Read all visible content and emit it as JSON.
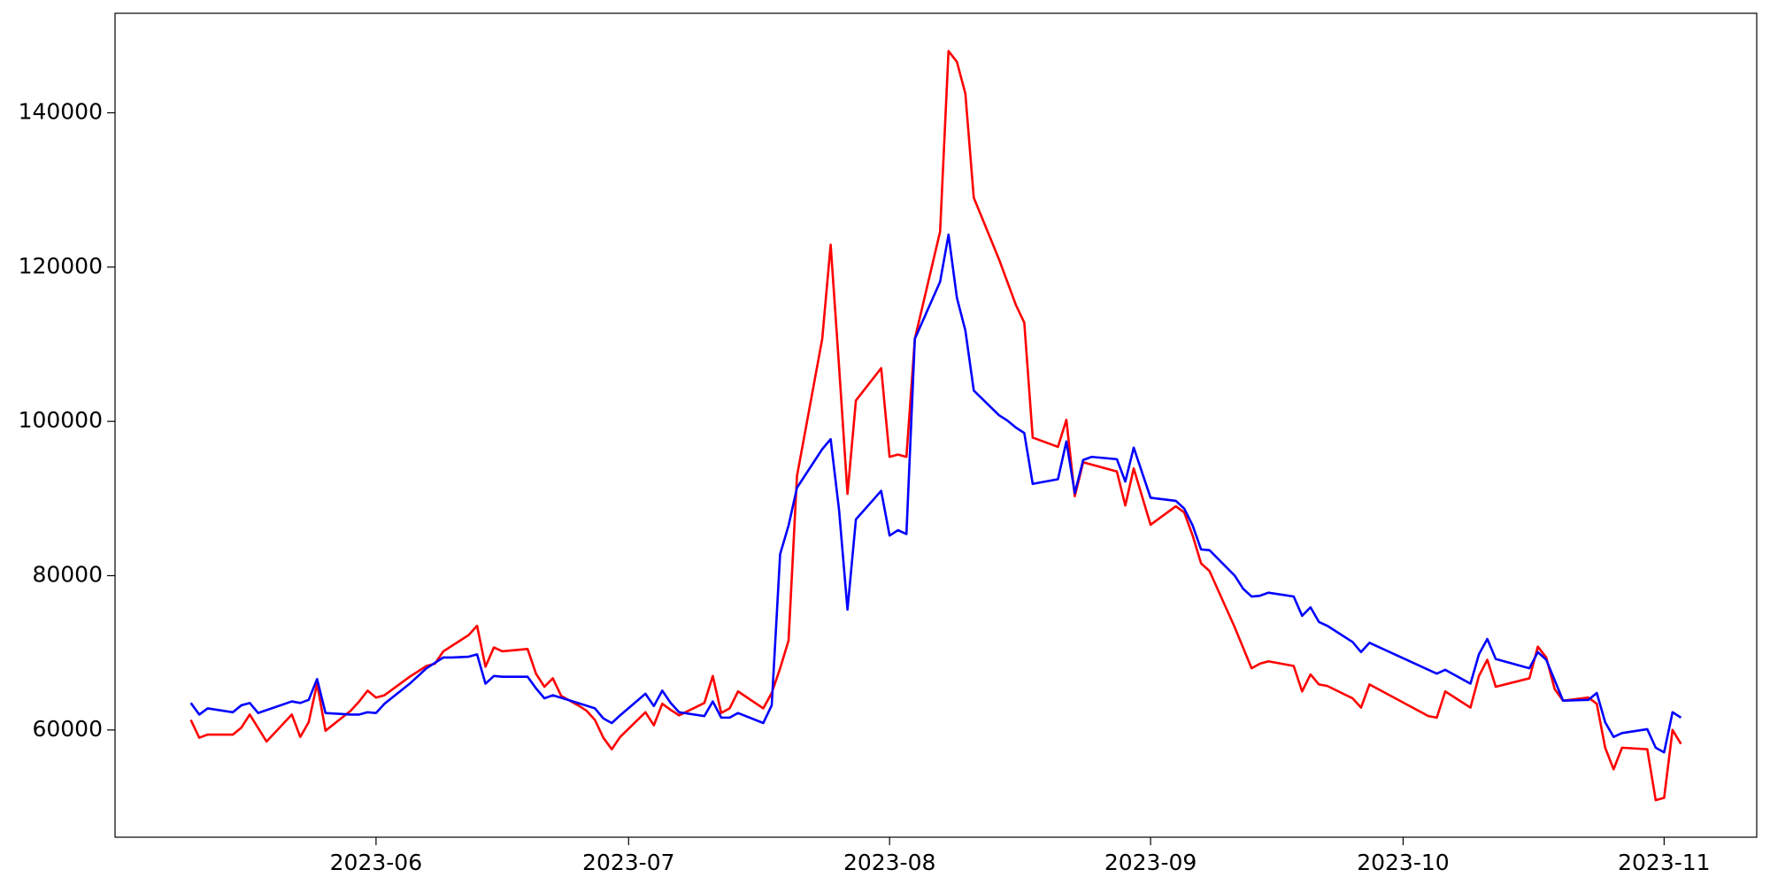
{
  "chart_data": {
    "type": "line",
    "xlim": [
      "2023-05-01",
      "2023-11-12"
    ],
    "xticks": [
      {
        "value": "2023-06-01",
        "label": "2023-06"
      },
      {
        "value": "2023-07-01",
        "label": "2023-07"
      },
      {
        "value": "2023-08-01",
        "label": "2023-08"
      },
      {
        "value": "2023-09-01",
        "label": "2023-09"
      },
      {
        "value": "2023-10-01",
        "label": "2023-10"
      },
      {
        "value": "2023-11-01",
        "label": "2023-11"
      }
    ],
    "ylim": [
      46100,
      152900
    ],
    "yticks": [
      60000,
      80000,
      100000,
      120000,
      140000
    ],
    "grid": false,
    "series": [
      {
        "color": "#ff0000",
        "x": [
          "2023-05-10",
          "2023-05-11",
          "2023-05-12",
          "2023-05-15",
          "2023-05-16",
          "2023-05-17",
          "2023-05-19",
          "2023-05-22",
          "2023-05-23",
          "2023-05-24",
          "2023-05-25",
          "2023-05-26",
          "2023-05-29",
          "2023-05-30",
          "2023-05-31",
          "2023-06-01",
          "2023-06-02",
          "2023-06-05",
          "2023-06-07",
          "2023-06-08",
          "2023-06-09",
          "2023-06-12",
          "2023-06-13",
          "2023-06-14",
          "2023-06-15",
          "2023-06-16",
          "2023-06-19",
          "2023-06-20",
          "2023-06-21",
          "2023-06-22",
          "2023-06-23",
          "2023-06-25",
          "2023-06-26",
          "2023-06-27",
          "2023-06-28",
          "2023-06-29",
          "2023-06-30",
          "2023-07-03",
          "2023-07-04",
          "2023-07-05",
          "2023-07-06",
          "2023-07-07",
          "2023-07-10",
          "2023-07-11",
          "2023-07-12",
          "2023-07-13",
          "2023-07-14",
          "2023-07-17",
          "2023-07-18",
          "2023-07-19",
          "2023-07-20",
          "2023-07-21",
          "2023-07-24",
          "2023-07-25",
          "2023-07-26",
          "2023-07-27",
          "2023-07-28",
          "2023-07-31",
          "2023-08-01",
          "2023-08-02",
          "2023-08-03",
          "2023-08-04",
          "2023-08-07",
          "2023-08-08",
          "2023-08-09",
          "2023-08-10",
          "2023-08-11",
          "2023-08-14",
          "2023-08-16",
          "2023-08-17",
          "2023-08-18",
          "2023-08-21",
          "2023-08-22",
          "2023-08-23",
          "2023-08-24",
          "2023-08-28",
          "2023-08-29",
          "2023-08-30",
          "2023-09-01",
          "2023-09-04",
          "2023-09-05",
          "2023-09-06",
          "2023-09-07",
          "2023-09-08",
          "2023-09-11",
          "2023-09-13",
          "2023-09-14",
          "2023-09-15",
          "2023-09-18",
          "2023-09-19",
          "2023-09-20",
          "2023-09-21",
          "2023-09-22",
          "2023-09-25",
          "2023-09-26",
          "2023-09-27",
          "2023-10-04",
          "2023-10-05",
          "2023-10-06",
          "2023-10-09",
          "2023-10-10",
          "2023-10-11",
          "2023-10-12",
          "2023-10-16",
          "2023-10-17",
          "2023-10-18",
          "2023-10-19",
          "2023-10-20",
          "2023-10-23",
          "2023-10-24",
          "2023-10-25",
          "2023-10-26",
          "2023-10-27",
          "2023-10-30",
          "2023-10-31",
          "2023-11-01",
          "2023-11-02",
          "2023-11-03"
        ],
        "values": [
          61300,
          59000,
          59400,
          59400,
          60300,
          62000,
          58500,
          62000,
          59100,
          61000,
          66000,
          59900,
          62500,
          63700,
          65100,
          64200,
          64500,
          66900,
          68300,
          68600,
          70200,
          72300,
          73500,
          68200,
          70700,
          70200,
          70500,
          67300,
          65600,
          66700,
          64400,
          63200,
          62500,
          61300,
          59000,
          57500,
          59100,
          62300,
          60600,
          63400,
          62600,
          61900,
          63500,
          67000,
          62200,
          62800,
          65000,
          62800,
          64800,
          68000,
          71600,
          92900,
          110700,
          122900,
          107100,
          90600,
          102700,
          106900,
          95400,
          95700,
          95400,
          110700,
          124600,
          148000,
          146600,
          142500,
          129000,
          121000,
          115100,
          112800,
          97900,
          96700,
          100200,
          90300,
          94700,
          93500,
          89100,
          93900,
          86600,
          89000,
          88200,
          85200,
          81600,
          80600,
          73300,
          68000,
          68600,
          68900,
          68300,
          65000,
          67200,
          65900,
          65700,
          64100,
          62900,
          65900,
          61800,
          61600,
          65000,
          62900,
          67000,
          69100,
          65600,
          66700,
          70800,
          69400,
          65300,
          63800,
          64200,
          63400,
          57700,
          54900,
          57700,
          57500,
          50900,
          51200,
          60000,
          58200
        ]
      },
      {
        "color": "#0000ff",
        "x": [
          "2023-05-10",
          "2023-05-11",
          "2023-05-12",
          "2023-05-15",
          "2023-05-16",
          "2023-05-17",
          "2023-05-18",
          "2023-05-22",
          "2023-05-23",
          "2023-05-24",
          "2023-05-25",
          "2023-05-26",
          "2023-05-29",
          "2023-05-30",
          "2023-05-31",
          "2023-06-01",
          "2023-06-02",
          "2023-06-05",
          "2023-06-07",
          "2023-06-09",
          "2023-06-10",
          "2023-06-12",
          "2023-06-13",
          "2023-06-14",
          "2023-06-15",
          "2023-06-16",
          "2023-06-19",
          "2023-06-20",
          "2023-06-21",
          "2023-06-22",
          "2023-06-25",
          "2023-06-27",
          "2023-06-28",
          "2023-06-29",
          "2023-06-30",
          "2023-07-03",
          "2023-07-04",
          "2023-07-05",
          "2023-07-06",
          "2023-07-07",
          "2023-07-10",
          "2023-07-11",
          "2023-07-12",
          "2023-07-13",
          "2023-07-14",
          "2023-07-17",
          "2023-07-18",
          "2023-07-19",
          "2023-07-20",
          "2023-07-21",
          "2023-07-24",
          "2023-07-25",
          "2023-07-26",
          "2023-07-27",
          "2023-07-28",
          "2023-07-31",
          "2023-08-01",
          "2023-08-02",
          "2023-08-03",
          "2023-08-04",
          "2023-08-07",
          "2023-08-08",
          "2023-08-09",
          "2023-08-10",
          "2023-08-11",
          "2023-08-14",
          "2023-08-15",
          "2023-08-16",
          "2023-08-17",
          "2023-08-18",
          "2023-08-21",
          "2023-08-22",
          "2023-08-23",
          "2023-08-24",
          "2023-08-25",
          "2023-08-28",
          "2023-08-29",
          "2023-08-30",
          "2023-09-01",
          "2023-09-04",
          "2023-09-05",
          "2023-09-06",
          "2023-09-07",
          "2023-09-08",
          "2023-09-11",
          "2023-09-12",
          "2023-09-13",
          "2023-09-14",
          "2023-09-15",
          "2023-09-18",
          "2023-09-19",
          "2023-09-20",
          "2023-09-21",
          "2023-09-22",
          "2023-09-25",
          "2023-09-26",
          "2023-09-27",
          "2023-10-05",
          "2023-10-06",
          "2023-10-09",
          "2023-10-10",
          "2023-10-11",
          "2023-10-12",
          "2023-10-16",
          "2023-10-17",
          "2023-10-18",
          "2023-10-20",
          "2023-10-23",
          "2023-10-24",
          "2023-10-25",
          "2023-10-26",
          "2023-10-27",
          "2023-10-30",
          "2023-10-31",
          "2023-11-01",
          "2023-11-02",
          "2023-11-03"
        ],
        "values": [
          63500,
          62000,
          62800,
          62300,
          63200,
          63500,
          62200,
          63700,
          63500,
          63900,
          66600,
          62200,
          62000,
          62000,
          62300,
          62200,
          63400,
          66000,
          68000,
          69400,
          69400,
          69500,
          69800,
          66000,
          67000,
          66900,
          66900,
          65400,
          64100,
          64500,
          63500,
          62800,
          61500,
          60900,
          61900,
          64700,
          63100,
          65100,
          63500,
          62300,
          61800,
          63700,
          61600,
          61600,
          62200,
          60900,
          63200,
          82800,
          86500,
          91400,
          96400,
          97700,
          88500,
          75600,
          87300,
          91000,
          85200,
          85900,
          85400,
          110700,
          118100,
          124200,
          116000,
          111800,
          104000,
          100800,
          100100,
          99200,
          98500,
          91900,
          92500,
          97400,
          90700,
          95000,
          95400,
          95100,
          92200,
          96600,
          90100,
          89700,
          88700,
          86500,
          83400,
          83300,
          80000,
          78300,
          77300,
          77400,
          77800,
          77300,
          74800,
          75900,
          74000,
          73500,
          71400,
          70100,
          71300,
          67300,
          67800,
          66000,
          69800,
          71800,
          69200,
          68000,
          70100,
          69100,
          63800,
          63900,
          64800,
          61000,
          59100,
          59600,
          60100,
          57700,
          57100,
          62300,
          61600
        ]
      }
    ]
  }
}
